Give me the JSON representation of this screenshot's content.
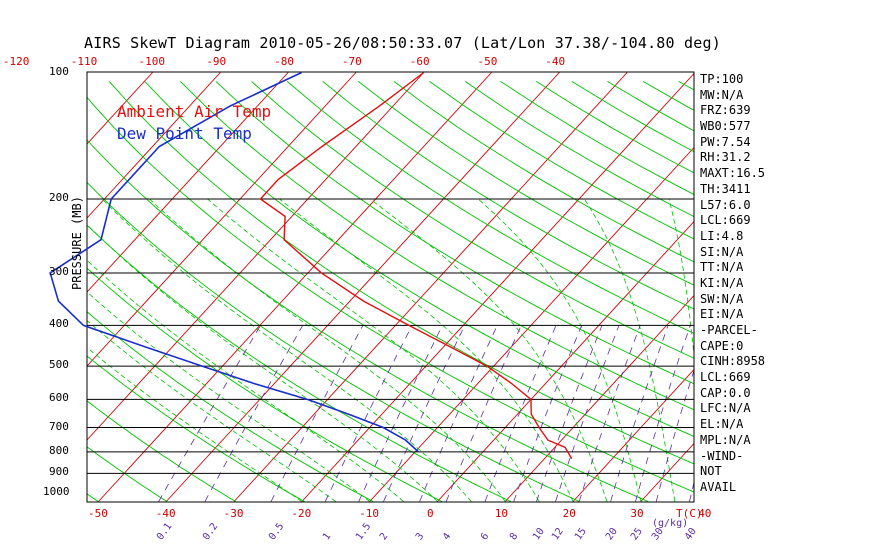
{
  "title": "AIRS SkewT Diagram 2010-05-26/08:50:33.07 (Lat/Lon 37.38/-104.80 deg)",
  "ylabel": "PRESSURE (MB)",
  "legend": {
    "air": "Ambient Air Temp",
    "dew": "Dew Point Temp"
  },
  "colors": {
    "air": "#e01010",
    "dew": "#1a2fc8",
    "isotherm": "#d00000",
    "dry_adiabat": "#00c000",
    "moist_adiabat": "#00c000",
    "mixing": "#5b2fa0",
    "isobar": "#000000"
  },
  "indices": [
    "TP:100",
    "MW:N/A",
    "FRZ:639",
    "WB0:577",
    "PW:7.54",
    "RH:31.2",
    "MAXT:16.5",
    "TH:3411",
    "L57:6.0",
    "LCL:669",
    "LI:4.8",
    "SI:N/A",
    "TT:N/A",
    "KI:N/A",
    "SW:N/A",
    "EI:N/A",
    "-PARCEL-",
    "CAPE:0",
    "CINH:8958",
    "LCL:669",
    "CAP:0.0",
    "LFC:N/A",
    "EL:N/A",
    "MPL:N/A",
    "-WIND-",
    "NOT",
    "AVAIL"
  ],
  "chart_data": {
    "type": "line",
    "title": "AIRS SkewT Diagram 2010-05-26/08:50:33.07 (Lat/Lon 37.38/-104.80 deg)",
    "ylabel": "PRESSURE (MB)",
    "xlabel": "T(C)",
    "mixing_unit": "(g/kg)",
    "pressure_ticks": [
      "100",
      "200",
      "300",
      "400",
      "500",
      "600",
      "700",
      "800",
      "900",
      "1000"
    ],
    "top_temp_ticks": [
      "-120",
      "-110",
      "-100",
      "-90",
      "-80",
      "-70",
      "-60",
      "-50",
      "-40"
    ],
    "bottom_temp_ticks": [
      "-50",
      "-40",
      "-30",
      "-20",
      "-10",
      "0",
      "10",
      "20",
      "30",
      "40"
    ],
    "mixing_ratio_ticks": [
      "0.1",
      "0.2",
      "0.5",
      "1",
      "1.5",
      "2",
      "3",
      "4",
      "6",
      "8",
      "10",
      "12",
      "15",
      "20",
      "25",
      "30",
      "40"
    ],
    "series": [
      {
        "name": "Ambient Air Temp",
        "points": [
          [
            100,
            -60
          ],
          [
            120,
            -62
          ],
          [
            150,
            -65
          ],
          [
            180,
            -67
          ],
          [
            200,
            -67
          ],
          [
            220,
            -61
          ],
          [
            250,
            -58
          ],
          [
            300,
            -48
          ],
          [
            350,
            -38
          ],
          [
            400,
            -28
          ],
          [
            450,
            -19
          ],
          [
            500,
            -11
          ],
          [
            550,
            -5
          ],
          [
            600,
            0
          ],
          [
            650,
            2
          ],
          [
            700,
            5
          ],
          [
            750,
            8
          ],
          [
            780,
            11.5
          ],
          [
            800,
            12.5
          ],
          [
            830,
            14
          ]
        ]
      },
      {
        "name": "Dew Point Temp",
        "points": [
          [
            100,
            -78
          ],
          [
            120,
            -84
          ],
          [
            150,
            -89
          ],
          [
            200,
            -89
          ],
          [
            250,
            -85
          ],
          [
            300,
            -88
          ],
          [
            350,
            -83
          ],
          [
            400,
            -76
          ],
          [
            450,
            -64
          ],
          [
            500,
            -53
          ],
          [
            550,
            -43
          ],
          [
            600,
            -33
          ],
          [
            650,
            -25
          ],
          [
            700,
            -18
          ],
          [
            750,
            -13
          ],
          [
            800,
            -9.5
          ]
        ]
      }
    ]
  }
}
